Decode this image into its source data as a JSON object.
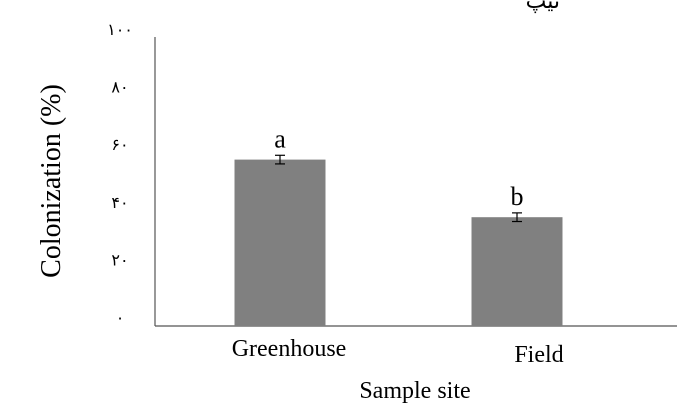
{
  "header_fragment": "تیپ",
  "chart_data": {
    "type": "bar",
    "categories": [
      "Greenhouse",
      "Field"
    ],
    "values": [
      55,
      35
    ],
    "errors": [
      1.5,
      1.5
    ],
    "significance_labels": [
      "a",
      "b"
    ],
    "xlabel": "Sample site",
    "ylabel": "Colonization  (%)",
    "ylim": [
      0,
      100
    ],
    "yticks": [
      0,
      20,
      40,
      60,
      80,
      100
    ],
    "ytick_labels": [
      "٠",
      "٢٠",
      "۴٠",
      "۶٠",
      "٨٠",
      "١٠٠"
    ],
    "bar_color": "#808080",
    "grid": false,
    "legend": "none"
  }
}
